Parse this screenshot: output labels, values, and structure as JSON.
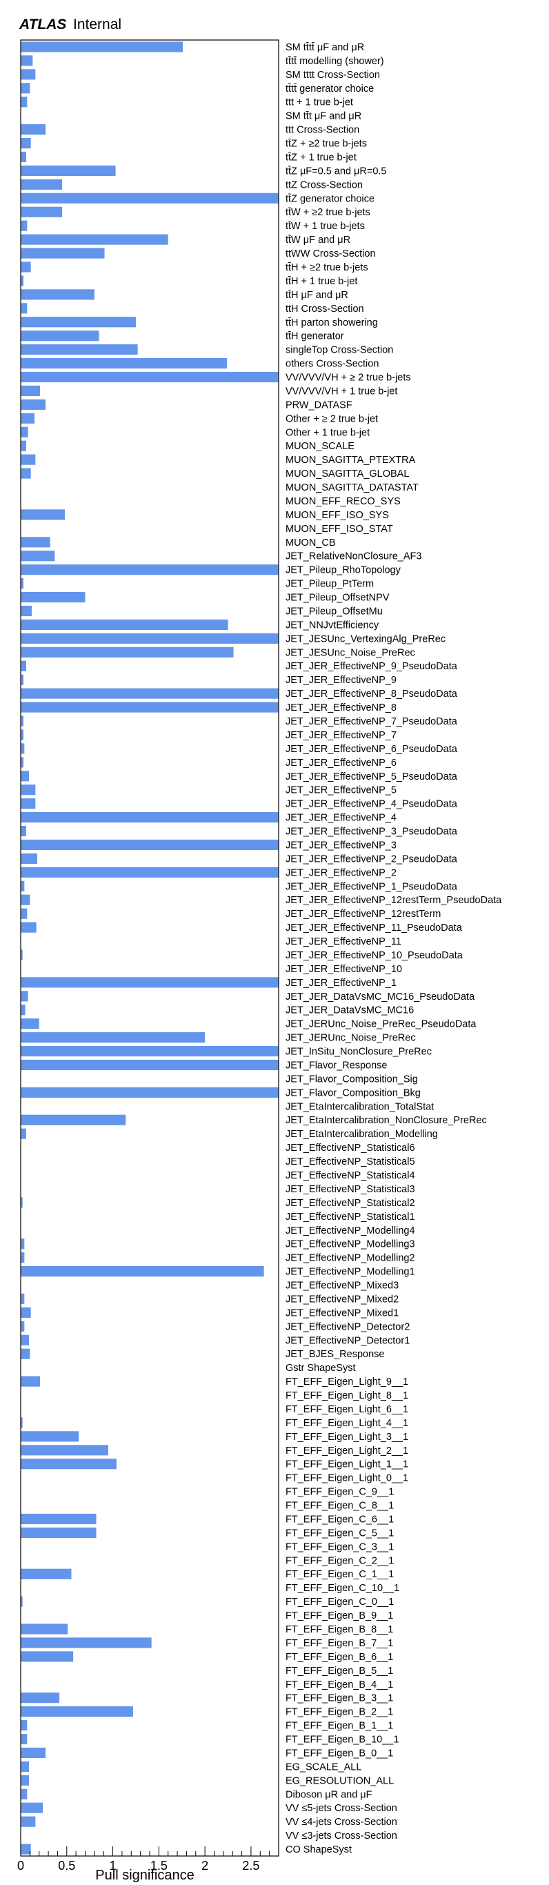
{
  "header": {
    "brand": "ATLAS",
    "status": "Internal"
  },
  "colors": {
    "bar": "#6495ed",
    "frame": "#000000"
  },
  "chart_data": {
    "type": "bar",
    "orientation": "horizontal",
    "xlabel": "Pull significance",
    "xlim": [
      0,
      2.8
    ],
    "xticks": [
      "0",
      "0.5",
      "1",
      "1.5",
      "2",
      "2.5"
    ],
    "grid": false,
    "categories": [
      "SM tt̄tt̄  μF and μR",
      "tt̄tt̄ modelling (shower)",
      "SM tttt Cross-Section",
      "tt̄tt̄ generator choice",
      "ttt + 1 true b-jet",
      "SM tt̄t  μF and μR",
      "ttt Cross-Section",
      "tt̄Z + ≥2 true b-jets",
      "tt̄Z + 1 true b-jet",
      "tt̄Z  μF=0.5 and μR=0.5",
      "ttZ Cross-Section",
      "tt̄Z generator choice",
      "tt̄W + ≥2 true b-jets",
      "tt̄W + 1 true b-jets",
      "tt̄W  μF and μR",
      "ttWW Cross-Section",
      "tt̄H + ≥2 true b-jets",
      "tt̄H + 1 true b-jet",
      "tt̄H  μF and μR",
      "ttH Cross-Section",
      "tt̄H parton showering",
      "tt̄H generator",
      "singleTop Cross-Section",
      "others Cross-Section",
      "VV/VVV/VH + ≥ 2 true b-jets",
      "VV/VVV/VH + 1 true b-jet",
      "PRW_DATASF",
      "Other + ≥ 2 true b-jet",
      "Other + 1 true b-jet",
      "MUON_SCALE",
      "MUON_SAGITTA_PTEXTRA",
      "MUON_SAGITTA_GLOBAL",
      "MUON_SAGITTA_DATASTAT",
      "MUON_EFF_RECO_SYS",
      "MUON_EFF_ISO_SYS",
      "MUON_EFF_ISO_STAT",
      "MUON_CB",
      "JET_RelativeNonClosure_AF3",
      "JET_Pileup_RhoTopology",
      "JET_Pileup_PtTerm",
      "JET_Pileup_OffsetNPV",
      "JET_Pileup_OffsetMu",
      "JET_NNJvtEfficiency",
      "JET_JESUnc_VertexingAlg_PreRec",
      "JET_JESUnc_Noise_PreRec",
      "JET_JER_EffectiveNP_9_PseudoData",
      "JET_JER_EffectiveNP_9",
      "JET_JER_EffectiveNP_8_PseudoData",
      "JET_JER_EffectiveNP_8",
      "JET_JER_EffectiveNP_7_PseudoData",
      "JET_JER_EffectiveNP_7",
      "JET_JER_EffectiveNP_6_PseudoData",
      "JET_JER_EffectiveNP_6",
      "JET_JER_EffectiveNP_5_PseudoData",
      "JET_JER_EffectiveNP_5",
      "JET_JER_EffectiveNP_4_PseudoData",
      "JET_JER_EffectiveNP_4",
      "JET_JER_EffectiveNP_3_PseudoData",
      "JET_JER_EffectiveNP_3",
      "JET_JER_EffectiveNP_2_PseudoData",
      "JET_JER_EffectiveNP_2",
      "JET_JER_EffectiveNP_1_PseudoData",
      "JET_JER_EffectiveNP_12restTerm_PseudoData",
      "JET_JER_EffectiveNP_12restTerm",
      "JET_JER_EffectiveNP_11_PseudoData",
      "JET_JER_EffectiveNP_11",
      "JET_JER_EffectiveNP_10_PseudoData",
      "JET_JER_EffectiveNP_10",
      "JET_JER_EffectiveNP_1",
      "JET_JER_DataVsMC_MC16_PseudoData",
      "JET_JER_DataVsMC_MC16",
      "JET_JERUnc_Noise_PreRec_PseudoData",
      "JET_JERUnc_Noise_PreRec",
      "JET_InSitu_NonClosure_PreRec",
      "JET_Flavor_Response",
      "JET_Flavor_Composition_Sig",
      "JET_Flavor_Composition_Bkg",
      "JET_EtaIntercalibration_TotalStat",
      "JET_EtaIntercalibration_NonClosure_PreRec",
      "JET_EtaIntercalibration_Modelling",
      "JET_EffectiveNP_Statistical6",
      "JET_EffectiveNP_Statistical5",
      "JET_EffectiveNP_Statistical4",
      "JET_EffectiveNP_Statistical3",
      "JET_EffectiveNP_Statistical2",
      "JET_EffectiveNP_Statistical1",
      "JET_EffectiveNP_Modelling4",
      "JET_EffectiveNP_Modelling3",
      "JET_EffectiveNP_Modelling2",
      "JET_EffectiveNP_Modelling1",
      "JET_EffectiveNP_Mixed3",
      "JET_EffectiveNP_Mixed2",
      "JET_EffectiveNP_Mixed1",
      "JET_EffectiveNP_Detector2",
      "JET_EffectiveNP_Detector1",
      "JET_BJES_Response",
      "Gstr ShapeSyst",
      "FT_EFF_Eigen_Light_9__1",
      "FT_EFF_Eigen_Light_8__1",
      "FT_EFF_Eigen_Light_6__1",
      "FT_EFF_Eigen_Light_4__1",
      "FT_EFF_Eigen_Light_3__1",
      "FT_EFF_Eigen_Light_2__1",
      "FT_EFF_Eigen_Light_1__1",
      "FT_EFF_Eigen_Light_0__1",
      "FT_EFF_Eigen_C_9__1",
      "FT_EFF_Eigen_C_8__1",
      "FT_EFF_Eigen_C_6__1",
      "FT_EFF_Eigen_C_5__1",
      "FT_EFF_Eigen_C_3__1",
      "FT_EFF_Eigen_C_2__1",
      "FT_EFF_Eigen_C_1__1",
      "FT_EFF_Eigen_C_10__1",
      "FT_EFF_Eigen_C_0__1",
      "FT_EFF_Eigen_B_9__1",
      "FT_EFF_Eigen_B_8__1",
      "FT_EFF_Eigen_B_7__1",
      "FT_EFF_Eigen_B_6__1",
      "FT_EFF_Eigen_B_5__1",
      "FT_EFF_Eigen_B_4__1",
      "FT_EFF_Eigen_B_3__1",
      "FT_EFF_Eigen_B_2__1",
      "FT_EFF_Eigen_B_1__1",
      "FT_EFF_Eigen_B_10__1",
      "FT_EFF_Eigen_B_0__1",
      "EG_SCALE_ALL",
      "EG_RESOLUTION_ALL",
      "Diboson μR and μF",
      "VV ≤5-jets Cross-Section",
      "VV ≤4-jets Cross-Section",
      "VV ≤3-jets Cross-Section",
      "CO ShapeSyst"
    ],
    "values": [
      1.76,
      0.13,
      0.16,
      0.1,
      0.07,
      0.0,
      0.27,
      0.11,
      0.06,
      1.03,
      0.45,
      2.8,
      0.45,
      0.07,
      1.6,
      0.91,
      0.11,
      0.03,
      0.8,
      0.07,
      1.25,
      0.85,
      1.27,
      2.24,
      2.8,
      0.21,
      0.27,
      0.15,
      0.08,
      0.06,
      0.16,
      0.11,
      0.0,
      0.0,
      0.48,
      0.0,
      0.32,
      0.37,
      2.8,
      0.03,
      0.7,
      0.12,
      2.25,
      2.8,
      2.31,
      0.06,
      0.03,
      2.8,
      2.8,
      0.03,
      0.03,
      0.04,
      0.03,
      0.09,
      0.16,
      0.16,
      2.8,
      0.06,
      2.8,
      0.18,
      2.8,
      0.04,
      0.1,
      0.07,
      0.17,
      0.0,
      0.02,
      0.0,
      2.8,
      0.08,
      0.05,
      0.2,
      2.0,
      2.8,
      2.8,
      0.0,
      2.8,
      0.0,
      1.14,
      0.06,
      0.0,
      0.0,
      0.0,
      0.0,
      0.02,
      0.0,
      0.0,
      0.04,
      0.04,
      2.64,
      0.0,
      0.04,
      0.11,
      0.04,
      0.09,
      0.1,
      0.0,
      0.21,
      0.0,
      0.0,
      0.02,
      0.63,
      0.95,
      1.04,
      0.0,
      0.0,
      0.0,
      0.82,
      0.82,
      0.0,
      0.0,
      0.55,
      0.0,
      0.02,
      0.0,
      0.51,
      1.42,
      0.57,
      0.0,
      0.0,
      0.42,
      1.22,
      0.07,
      0.07,
      0.27,
      0.09,
      0.09,
      0.07,
      0.24,
      0.16,
      0.0,
      0.11
    ]
  }
}
